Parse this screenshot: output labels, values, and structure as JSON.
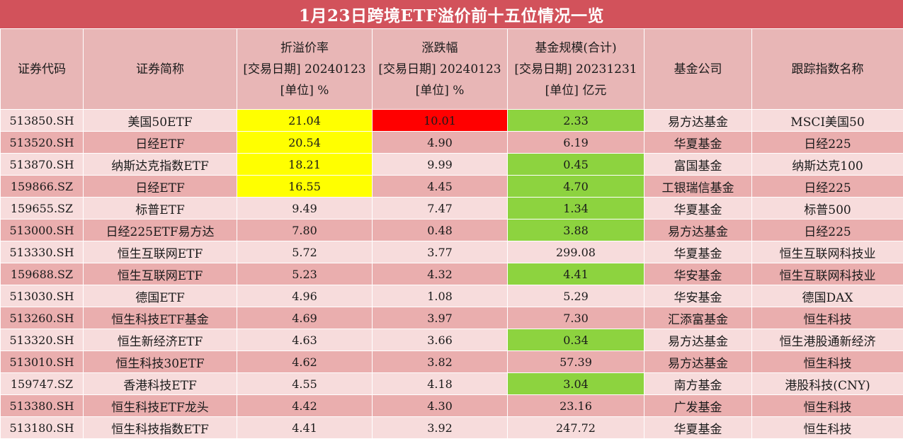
{
  "title": "1月23日跨境ETF溢价前十五位情况一览",
  "colors": {
    "title_bg": "#d2525b",
    "header_bg": "#e8b6b6",
    "row_light": "#f7dcdc",
    "row_dark": "#eaaeae",
    "highlight_yellow": "#ffff00",
    "highlight_red": "#ff0000",
    "highlight_green": "#8dd33f"
  },
  "headers": {
    "code": "证券代码",
    "name": "证券简称",
    "premium": [
      "折溢价率",
      "[交易日期] 20240123",
      "[单位] %"
    ],
    "change": [
      "涨跌幅",
      "[交易日期] 20240123",
      "[单位] %"
    ],
    "size": [
      "基金规模(合计)",
      "[交易日期] 20231231",
      "[单位] 亿元"
    ],
    "company": "基金公司",
    "index": "跟踪指数名称"
  },
  "rows": [
    {
      "code": "513850.SH",
      "name": "美国50ETF",
      "premium": "21.04",
      "change": "10.01",
      "size": "2.33",
      "company": "易方达基金",
      "index": "MSCI美国50"
    },
    {
      "code": "513520.SH",
      "name": "日经ETF",
      "premium": "20.54",
      "change": "4.90",
      "size": "6.19",
      "company": "华夏基金",
      "index": "日经225"
    },
    {
      "code": "513870.SH",
      "name": "纳斯达克指数ETF",
      "premium": "18.21",
      "change": "9.99",
      "size": "0.45",
      "company": "富国基金",
      "index": "纳斯达克100"
    },
    {
      "code": "159866.SZ",
      "name": "日经ETF",
      "premium": "16.55",
      "change": "4.45",
      "size": "4.70",
      "company": "工银瑞信基金",
      "index": "日经225"
    },
    {
      "code": "159655.SZ",
      "name": "标普ETF",
      "premium": "9.49",
      "change": "7.47",
      "size": "1.34",
      "company": "华夏基金",
      "index": "标普500"
    },
    {
      "code": "513000.SH",
      "name": "日经225ETF易方达",
      "premium": "7.80",
      "change": "0.48",
      "size": "3.88",
      "company": "易方达基金",
      "index": "日经225"
    },
    {
      "code": "513330.SH",
      "name": "恒生互联网ETF",
      "premium": "5.72",
      "change": "3.77",
      "size": "299.08",
      "company": "华夏基金",
      "index": "恒生互联网科技业"
    },
    {
      "code": "159688.SZ",
      "name": "恒生互联网ETF",
      "premium": "5.23",
      "change": "4.32",
      "size": "4.41",
      "company": "华安基金",
      "index": "恒生互联网科技业"
    },
    {
      "code": "513030.SH",
      "name": "德国ETF",
      "premium": "4.96",
      "change": "1.08",
      "size": "5.29",
      "company": "华安基金",
      "index": "德国DAX"
    },
    {
      "code": "513260.SH",
      "name": "恒生科技ETF基金",
      "premium": "4.69",
      "change": "3.97",
      "size": "7.30",
      "company": "汇添富基金",
      "index": "恒生科技"
    },
    {
      "code": "513320.SH",
      "name": "恒生新经济ETF",
      "premium": "4.63",
      "change": "3.66",
      "size": "0.34",
      "company": "易方达基金",
      "index": "恒生港股通新经济"
    },
    {
      "code": "513010.SH",
      "name": "恒生科技30ETF",
      "premium": "4.62",
      "change": "3.82",
      "size": "57.39",
      "company": "易方达基金",
      "index": "恒生科技"
    },
    {
      "code": "159747.SZ",
      "name": "香港科技ETF",
      "premium": "4.55",
      "change": "4.18",
      "size": "3.04",
      "company": "南方基金",
      "index": "港股科技(CNY)"
    },
    {
      "code": "513380.SH",
      "name": "恒生科技ETF龙头",
      "premium": "4.42",
      "change": "4.30",
      "size": "23.16",
      "company": "广发基金",
      "index": "恒生科技"
    },
    {
      "code": "513180.SH",
      "name": "恒生科技指数ETF",
      "premium": "4.41",
      "change": "3.92",
      "size": "247.72",
      "company": "华夏基金",
      "index": "恒生科技"
    }
  ]
}
